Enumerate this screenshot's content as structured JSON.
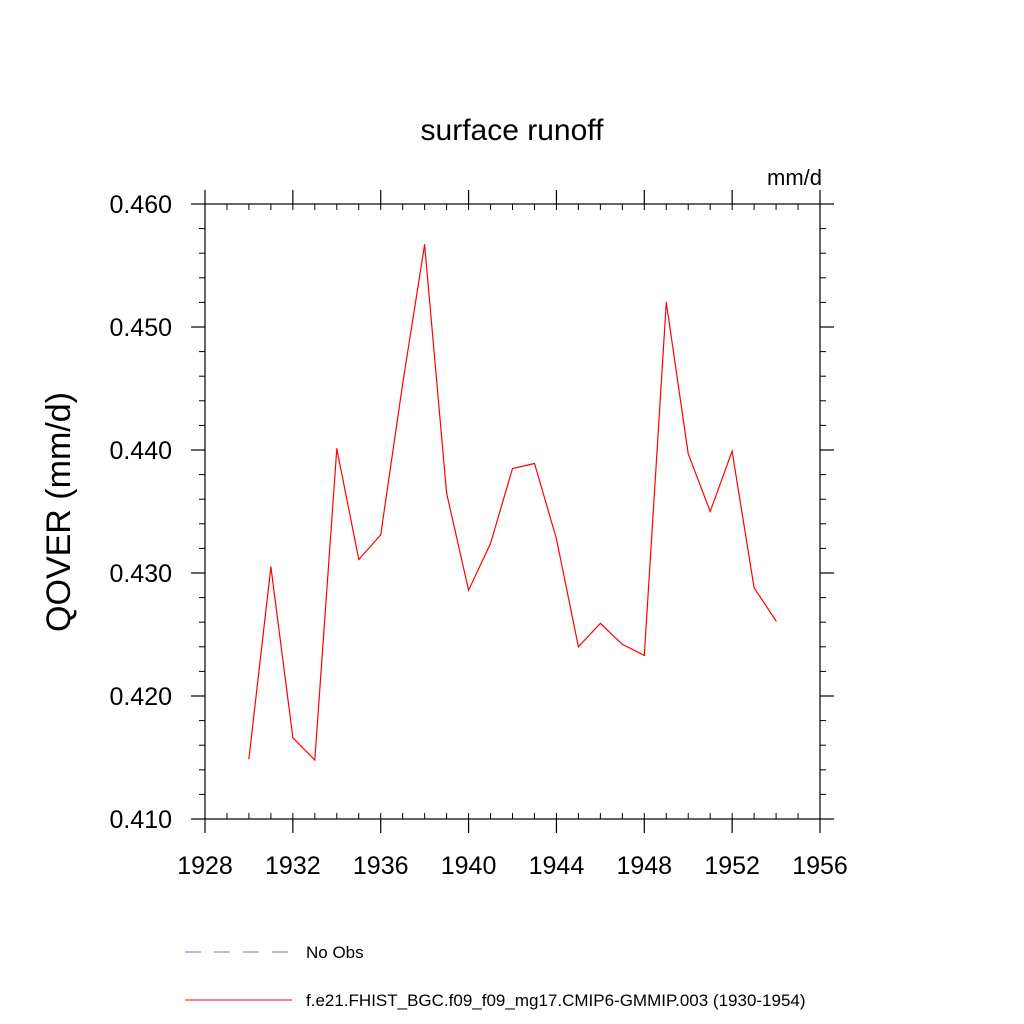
{
  "chart_data": {
    "type": "line",
    "title": "surface runoff",
    "units_label": "mm/d",
    "ylabel": "QOVER  (mm/d)",
    "xlabel": "",
    "xlim": [
      1928,
      1956
    ],
    "ylim": [
      0.41,
      0.46
    ],
    "x_ticks": [
      1928,
      1932,
      1936,
      1940,
      1944,
      1948,
      1952,
      1956
    ],
    "x_tick_labels": [
      "1928",
      "1932",
      "1936",
      "1940",
      "1944",
      "1948",
      "1952",
      "1956"
    ],
    "x_minor_step": 1,
    "y_ticks": [
      0.41,
      0.42,
      0.43,
      0.44,
      0.45,
      0.46
    ],
    "y_tick_labels": [
      "0.410",
      "0.420",
      "0.430",
      "0.440",
      "0.450",
      "0.460"
    ],
    "y_minor_step": 0.002,
    "grid": false,
    "legend_position": "bottom",
    "series": [
      {
        "name": "f.e21.FHIST_BGC.f09_f09_mg17.CMIP6-GMMIP.003 (1930-1954)",
        "color": "#ff0000",
        "style": "solid",
        "x": [
          1930,
          1931,
          1932,
          1933,
          1934,
          1935,
          1936,
          1937,
          1938,
          1939,
          1940,
          1941,
          1942,
          1943,
          1944,
          1945,
          1946,
          1947,
          1948,
          1949,
          1950,
          1951,
          1952,
          1953,
          1954
        ],
        "values": [
          0.4149,
          0.4305,
          0.4166,
          0.4148,
          0.4401,
          0.4311,
          0.4331,
          0.4454,
          0.4567,
          0.4365,
          0.4286,
          0.4324,
          0.4385,
          0.4389,
          0.4328,
          0.424,
          0.4259,
          0.4242,
          0.4233,
          0.452,
          0.4397,
          0.435,
          0.4399,
          0.4288,
          0.4261
        ]
      }
    ],
    "legend": [
      {
        "label": "No Obs",
        "color": "#7070c0",
        "style": "dashed"
      },
      {
        "label": "f.e21.FHIST_BGC.f09_f09_mg17.CMIP6-GMMIP.003 (1930-1954)",
        "color": "#ff0000",
        "style": "solid"
      }
    ]
  }
}
